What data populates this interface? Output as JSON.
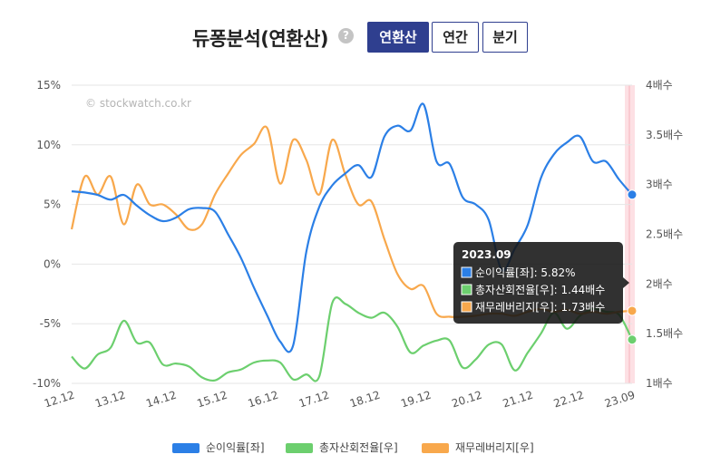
{
  "header": {
    "title": "듀퐁분석(연환산)",
    "help_icon": "?",
    "buttons": [
      {
        "label": "연환산",
        "active": true
      },
      {
        "label": "연간",
        "active": false
      },
      {
        "label": "분기",
        "active": false
      }
    ]
  },
  "watermark": "© stockwatch.co.kr",
  "colors": {
    "blue": "#2b7fe6",
    "green": "#6ccf6e",
    "orange": "#f8a84c",
    "highlight": "#fde0e4"
  },
  "chart_data": {
    "type": "line",
    "x_tick_labels": [
      "12.12",
      "13.12",
      "14.12",
      "15.12",
      "16.12",
      "17.12",
      "18.12",
      "19.12",
      "20.12",
      "21.12",
      "22.12",
      "23.09"
    ],
    "x_range": [
      0,
      43
    ],
    "left_axis": {
      "min": -10,
      "max": 15,
      "ticks": [
        -10,
        -5,
        0,
        5,
        10,
        15
      ],
      "tick_labels": [
        "-10%",
        "-5%",
        "0%",
        "5%",
        "10%",
        "15%"
      ]
    },
    "right_axis": {
      "min": 1,
      "max": 4,
      "ticks": [
        1,
        1.5,
        2,
        2.5,
        3,
        3.5,
        4
      ],
      "tick_labels": [
        "1배수",
        "1.5배수",
        "2배수",
        "2.5배수",
        "3배수",
        "3.5배수",
        "4배수"
      ]
    },
    "series": [
      {
        "name": "순이익률[좌]",
        "axis": "left",
        "color": "#2b7fe6",
        "values": [
          6.1,
          6.0,
          5.8,
          5.4,
          5.8,
          4.9,
          4.1,
          3.6,
          3.9,
          4.6,
          4.7,
          4.4,
          2.5,
          0.5,
          -2.0,
          -4.3,
          -6.5,
          -6.8,
          1.0,
          4.8,
          6.6,
          7.6,
          8.3,
          7.3,
          10.7,
          11.6,
          11.2,
          13.4,
          8.6,
          8.4,
          5.6,
          5.0,
          3.7,
          -0.5,
          1.3,
          3.3,
          7.2,
          9.2,
          10.2,
          10.7,
          8.6,
          8.6,
          7.1,
          5.82
        ]
      },
      {
        "name": "총자산회전율[우]",
        "axis": "right",
        "color": "#6ccf6e",
        "values": [
          1.27,
          1.15,
          1.29,
          1.36,
          1.63,
          1.41,
          1.41,
          1.19,
          1.2,
          1.17,
          1.06,
          1.03,
          1.11,
          1.14,
          1.21,
          1.23,
          1.21,
          1.04,
          1.09,
          1.07,
          1.81,
          1.8,
          1.71,
          1.66,
          1.71,
          1.57,
          1.31,
          1.38,
          1.43,
          1.43,
          1.16,
          1.24,
          1.39,
          1.39,
          1.13,
          1.31,
          1.5,
          1.71,
          1.55,
          1.68,
          1.75,
          1.72,
          1.69,
          1.44
        ]
      },
      {
        "name": "재무레버리지[우]",
        "axis": "right",
        "color": "#f8a84c",
        "values": [
          2.55,
          3.08,
          2.9,
          3.08,
          2.6,
          3.0,
          2.8,
          2.8,
          2.7,
          2.55,
          2.6,
          2.9,
          3.11,
          3.3,
          3.41,
          3.57,
          3.01,
          3.45,
          3.25,
          2.9,
          3.45,
          3.1,
          2.8,
          2.83,
          2.45,
          2.1,
          1.95,
          1.98,
          1.7,
          1.67,
          1.67,
          1.68,
          1.7,
          1.7,
          1.68,
          1.72,
          1.75,
          1.72,
          1.74,
          1.7,
          1.72,
          1.7,
          1.72,
          1.73
        ]
      }
    ],
    "tooltip": {
      "title": "2023.09",
      "rows": [
        {
          "label": "순이익률[좌]",
          "value": "5.82%",
          "color": "#2b7fe6"
        },
        {
          "label": "총자산회전율[우]",
          "value": "1.44배수",
          "color": "#6ccf6e"
        },
        {
          "label": "재무레버리지[우]",
          "value": "1.73배수",
          "color": "#f8a84c"
        }
      ]
    },
    "legend": [
      "순이익률[좌]",
      "총자산회전율[우]",
      "재무레버리지[우]"
    ],
    "grid": true
  }
}
